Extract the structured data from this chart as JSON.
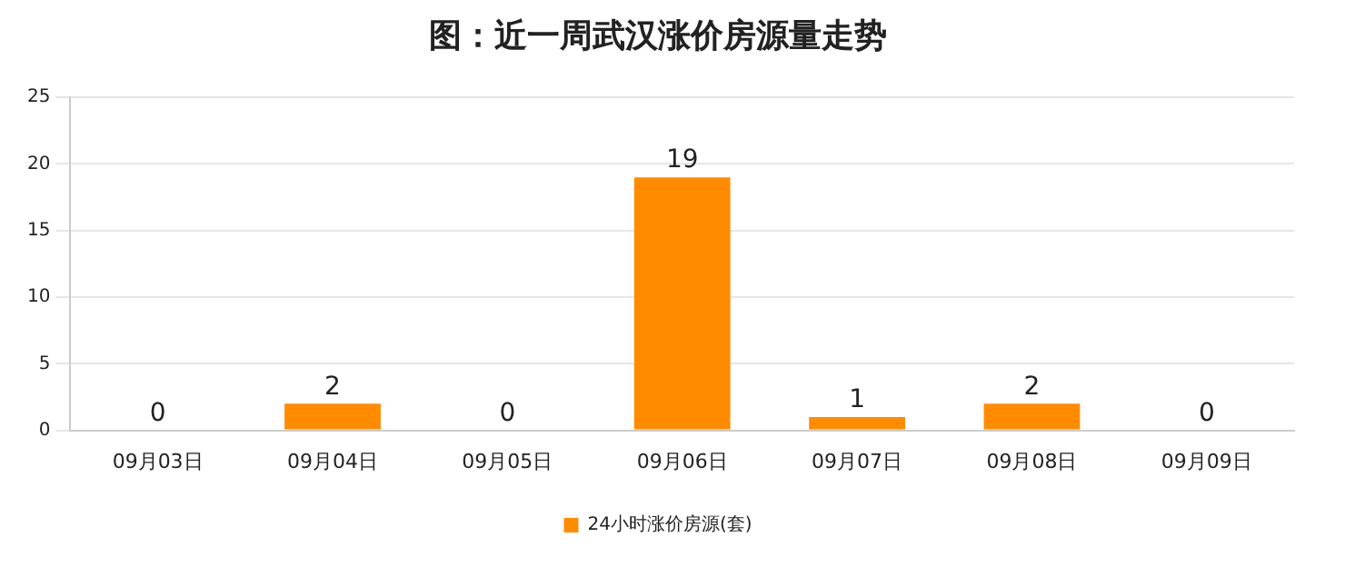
{
  "chart_data": {
    "type": "bar",
    "title": "图：近一周武汉涨价房源量走势",
    "categories": [
      "09月03日",
      "09月04日",
      "09月05日",
      "09月06日",
      "09月07日",
      "09月08日",
      "09月09日"
    ],
    "series": [
      {
        "name": "24小时涨价房源(套)",
        "color": "#ff8c00",
        "values": [
          0,
          2,
          0,
          19,
          1,
          2,
          0
        ]
      }
    ],
    "ylim": [
      0,
      25
    ],
    "yticks": [
      0,
      5,
      10,
      15,
      20,
      25
    ],
    "grid": "y",
    "legend": "bottom",
    "data_labels": true
  }
}
